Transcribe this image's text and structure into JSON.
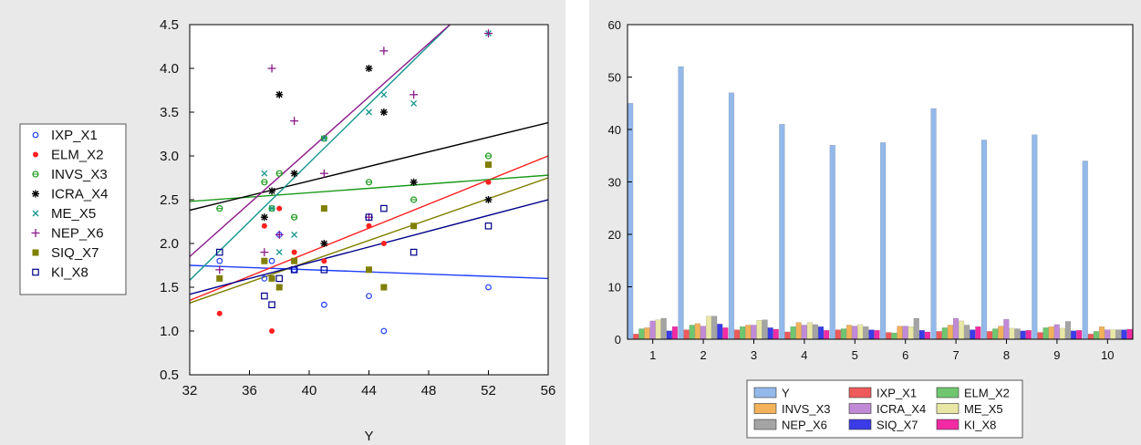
{
  "charts": {
    "scatter": {
      "type": "scatter",
      "xlabel": "Y",
      "xlim": [
        32,
        56
      ],
      "ylim": [
        0.5,
        4.5
      ],
      "x_ticks": [
        32,
        36,
        40,
        44,
        48,
        52,
        56
      ],
      "y_ticks": [
        0.5,
        1.0,
        1.5,
        2.0,
        2.5,
        3.0,
        3.5,
        4.0,
        4.5
      ],
      "grid": false,
      "legend_position": "left",
      "series": [
        {
          "name": "IXP_X1",
          "color": "#1f3fff",
          "marker": "circle-open",
          "points": [
            [
              34,
              1.8
            ],
            [
              37,
              1.6
            ],
            [
              37.5,
              1.8
            ],
            [
              38,
              2.1
            ],
            [
              39,
              1.7
            ],
            [
              41,
              1.3
            ],
            [
              44,
              1.4
            ],
            [
              45,
              1.0
            ],
            [
              52,
              1.5
            ]
          ],
          "fit": [
            1.75,
            1.6
          ]
        },
        {
          "name": "ELM_X2",
          "color": "#ff1f1f",
          "marker": "dot",
          "points": [
            [
              34,
              1.2
            ],
            [
              37,
              2.2
            ],
            [
              37.5,
              1.0
            ],
            [
              38,
              2.4
            ],
            [
              39,
              1.9
            ],
            [
              41,
              1.8
            ],
            [
              44,
              2.2
            ],
            [
              45,
              2.0
            ],
            [
              52,
              2.7
            ]
          ],
          "fit": [
            1.35,
            3.0
          ]
        },
        {
          "name": "INVS_X3",
          "color": "#1a9a1a",
          "marker": "circle-cross",
          "points": [
            [
              34,
              2.4
            ],
            [
              37,
              2.7
            ],
            [
              37.5,
              2.4
            ],
            [
              38,
              2.8
            ],
            [
              39,
              2.3
            ],
            [
              41,
              3.2
            ],
            [
              44,
              2.7
            ],
            [
              47,
              2.5
            ],
            [
              52,
              3.0
            ]
          ],
          "fit": [
            2.48,
            2.78
          ]
        },
        {
          "name": "ICRA_X4",
          "color": "#000000",
          "marker": "asterisk",
          "points": [
            [
              37,
              2.3
            ],
            [
              37.5,
              2.6
            ],
            [
              38,
              3.7
            ],
            [
              39,
              2.8
            ],
            [
              41,
              2.0
            ],
            [
              44,
              4.0
            ],
            [
              45,
              3.5
            ],
            [
              47,
              2.7
            ],
            [
              52,
              2.5
            ]
          ],
          "fit": [
            2.38,
            3.38
          ]
        },
        {
          "name": "ME_X5",
          "color": "#13958f",
          "marker": "x",
          "points": [
            [
              37,
              2.8
            ],
            [
              37.5,
              2.4
            ],
            [
              38,
              1.9
            ],
            [
              39,
              2.1
            ],
            [
              41,
              3.2
            ],
            [
              44,
              3.5
            ],
            [
              45,
              3.7
            ],
            [
              47,
              3.6
            ],
            [
              52,
              4.4
            ]
          ],
          "fit": [
            1.58,
            5.6
          ]
        },
        {
          "name": "NEP_X6",
          "color": "#8a1a8a",
          "marker": "plus",
          "points": [
            [
              34,
              1.7
            ],
            [
              37,
              1.9
            ],
            [
              37.5,
              4.0
            ],
            [
              38,
              2.1
            ],
            [
              39,
              3.4
            ],
            [
              41,
              2.8
            ],
            [
              44,
              2.3
            ],
            [
              45,
              4.2
            ],
            [
              47,
              3.7
            ],
            [
              52,
              4.4
            ]
          ],
          "fit": [
            1.85,
            5.5
          ]
        },
        {
          "name": "SIQ_X7",
          "color": "#7f7f00",
          "marker": "square",
          "points": [
            [
              34,
              1.6
            ],
            [
              37,
              1.8
            ],
            [
              37.5,
              1.6
            ],
            [
              38,
              1.5
            ],
            [
              39,
              1.8
            ],
            [
              41,
              2.4
            ],
            [
              44,
              1.7
            ],
            [
              45,
              1.5
            ],
            [
              47,
              2.2
            ],
            [
              52,
              2.9
            ]
          ],
          "fit": [
            1.32,
            2.75
          ]
        },
        {
          "name": "KI_X8",
          "color": "#00008b",
          "marker": "square-open",
          "points": [
            [
              34,
              1.9
            ],
            [
              37,
              1.4
            ],
            [
              37.5,
              1.3
            ],
            [
              38,
              1.6
            ],
            [
              39,
              1.7
            ],
            [
              41,
              1.7
            ],
            [
              44,
              2.3
            ],
            [
              45,
              2.4
            ],
            [
              47,
              1.9
            ],
            [
              52,
              2.2
            ]
          ],
          "fit": [
            1.42,
            2.5
          ]
        }
      ]
    },
    "bar": {
      "type": "bar",
      "categories": [
        "1",
        "2",
        "3",
        "4",
        "5",
        "6",
        "7",
        "8",
        "9",
        "10"
      ],
      "ylim": [
        0,
        60
      ],
      "y_ticks": [
        0,
        10,
        20,
        30,
        40,
        50,
        60
      ],
      "grid": false,
      "legend_position": "bottom",
      "series": [
        {
          "name": "Y",
          "color": "#93b9ea",
          "values": [
            45,
            52,
            47,
            41,
            37,
            37.5,
            44,
            38,
            39,
            34
          ]
        },
        {
          "name": "IXP_X1",
          "color": "#ef5a5a",
          "values": [
            1.0,
            1.8,
            1.8,
            1.4,
            1.8,
            1.3,
            1.5,
            1.5,
            1.3,
            1.0
          ]
        },
        {
          "name": "ELM_X2",
          "color": "#6fc66f",
          "values": [
            2.0,
            2.7,
            2.4,
            2.4,
            2.0,
            1.2,
            2.2,
            2.0,
            2.2,
            1.5
          ]
        },
        {
          "name": "INVS_X3",
          "color": "#f2b25a",
          "values": [
            2.2,
            3.0,
            2.7,
            3.2,
            2.7,
            2.5,
            2.7,
            2.5,
            2.4,
            2.4
          ]
        },
        {
          "name": "ICRA_X4",
          "color": "#c18ad6",
          "values": [
            3.5,
            2.5,
            2.7,
            2.7,
            2.5,
            2.5,
            4.0,
            3.8,
            2.8,
            1.8
          ]
        },
        {
          "name": "ME_X5",
          "color": "#e9e7a5",
          "values": [
            3.7,
            4.4,
            3.6,
            3.2,
            2.8,
            2.4,
            3.5,
            2.1,
            2.1,
            1.8
          ]
        },
        {
          "name": "NEP_X6",
          "color": "#a4a4a4",
          "values": [
            4.0,
            4.4,
            3.7,
            2.8,
            2.4,
            4.0,
            2.7,
            2.0,
            3.4,
            1.8
          ]
        },
        {
          "name": "SIQ_X7",
          "color": "#3b3be8",
          "values": [
            1.6,
            2.9,
            2.2,
            2.4,
            1.8,
            1.7,
            1.8,
            1.6,
            1.6,
            1.8
          ]
        },
        {
          "name": "KI_X8",
          "color": "#f22aa4",
          "values": [
            2.4,
            2.2,
            1.9,
            1.7,
            1.7,
            1.4,
            2.4,
            1.7,
            1.7,
            1.9
          ]
        }
      ]
    }
  },
  "chart_data": [
    {
      "type": "scatter",
      "ref": "charts.scatter"
    },
    {
      "type": "bar",
      "ref": "charts.bar"
    }
  ]
}
